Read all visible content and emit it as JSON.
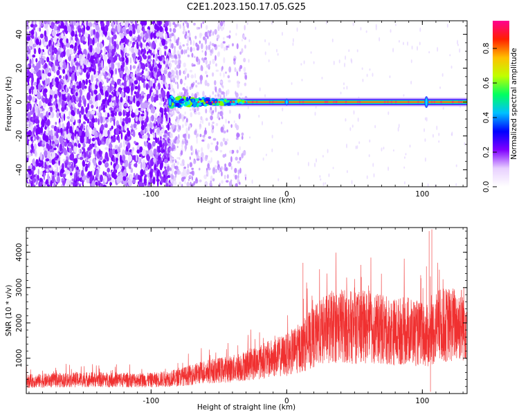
{
  "title": "C2E1.2023.150.17.05.G25",
  "chart_data": [
    {
      "type": "heatmap",
      "xlabel": "Height of straight line (km)",
      "ylabel": "Frequency (Hz)",
      "xlim": [
        -192,
        133
      ],
      "ylim": [
        -50,
        48
      ],
      "x_ticks": [
        -100,
        0,
        100
      ],
      "x_tick_labels": [
        "-100",
        "0",
        "100"
      ],
      "y_ticks": [
        -40,
        -20,
        0,
        20,
        40
      ],
      "y_tick_labels": [
        "-40",
        "-20",
        "0",
        "20",
        "40"
      ],
      "colorbar": {
        "label": "Normalized spectral amplitude",
        "range": [
          0,
          0.96
        ],
        "ticks": [
          0,
          0.2,
          0.4,
          0.6,
          0.8
        ],
        "tick_labels": [
          "0.0",
          "0.2",
          "0.4",
          "0.6",
          "0.8"
        ],
        "colormap": [
          "#ffffff",
          "#e8d0ff",
          "#8000ff",
          "#0000ff",
          "#00c0ff",
          "#00ff60",
          "#c0ff00",
          "#ffc000",
          "#ff2000",
          "#ff0090"
        ]
      },
      "ridge": {
        "frequency_hz": 0,
        "x_start": -86,
        "x_end": 133,
        "note_features": [
          {
            "x": -86,
            "width_hz": 6
          },
          {
            "x": 0,
            "width_hz": 4
          },
          {
            "x": 103,
            "width_hz": 7
          }
        ]
      },
      "noise_region": {
        "x_start": -192,
        "x_end": -86,
        "density": 0.9
      },
      "sparse_region": {
        "x_start": -86,
        "x_end": -30,
        "density": 0.4
      }
    },
    {
      "type": "line",
      "xlabel": "Height of straight line (km)",
      "ylabel": "SNR (10 * v/v)",
      "xlim": [
        -192,
        133
      ],
      "ylim": [
        0,
        4700
      ],
      "x_ticks": [
        -100,
        0,
        100
      ],
      "x_tick_labels": [
        "-100",
        "0",
        "100"
      ],
      "y_ticks": [
        1000,
        2000,
        3000,
        4000
      ],
      "y_tick_labels": [
        "1000",
        "2000",
        "3000",
        "4000"
      ],
      "color": "#f03030",
      "trend": {
        "x": [
          -192,
          -150,
          -100,
          -80,
          -60,
          -40,
          -20,
          0,
          10,
          20,
          30,
          40,
          50,
          60,
          70,
          80,
          90,
          100,
          106,
          110,
          120,
          133
        ],
        "y": [
          350,
          400,
          380,
          450,
          620,
          700,
          900,
          1100,
          1300,
          1600,
          1850,
          1950,
          1850,
          1900,
          1800,
          1750,
          1800,
          1650,
          1600,
          1900,
          1950,
          2000
        ]
      },
      "spikes": [
        {
          "x": 12,
          "y": 3700
        },
        {
          "x": 55,
          "y": 3300
        },
        {
          "x": 103,
          "y": 3600
        },
        {
          "x": 105,
          "y": 4600
        },
        {
          "x": 107,
          "y": 4650
        },
        {
          "x": 106,
          "y": 50
        }
      ]
    }
  ]
}
